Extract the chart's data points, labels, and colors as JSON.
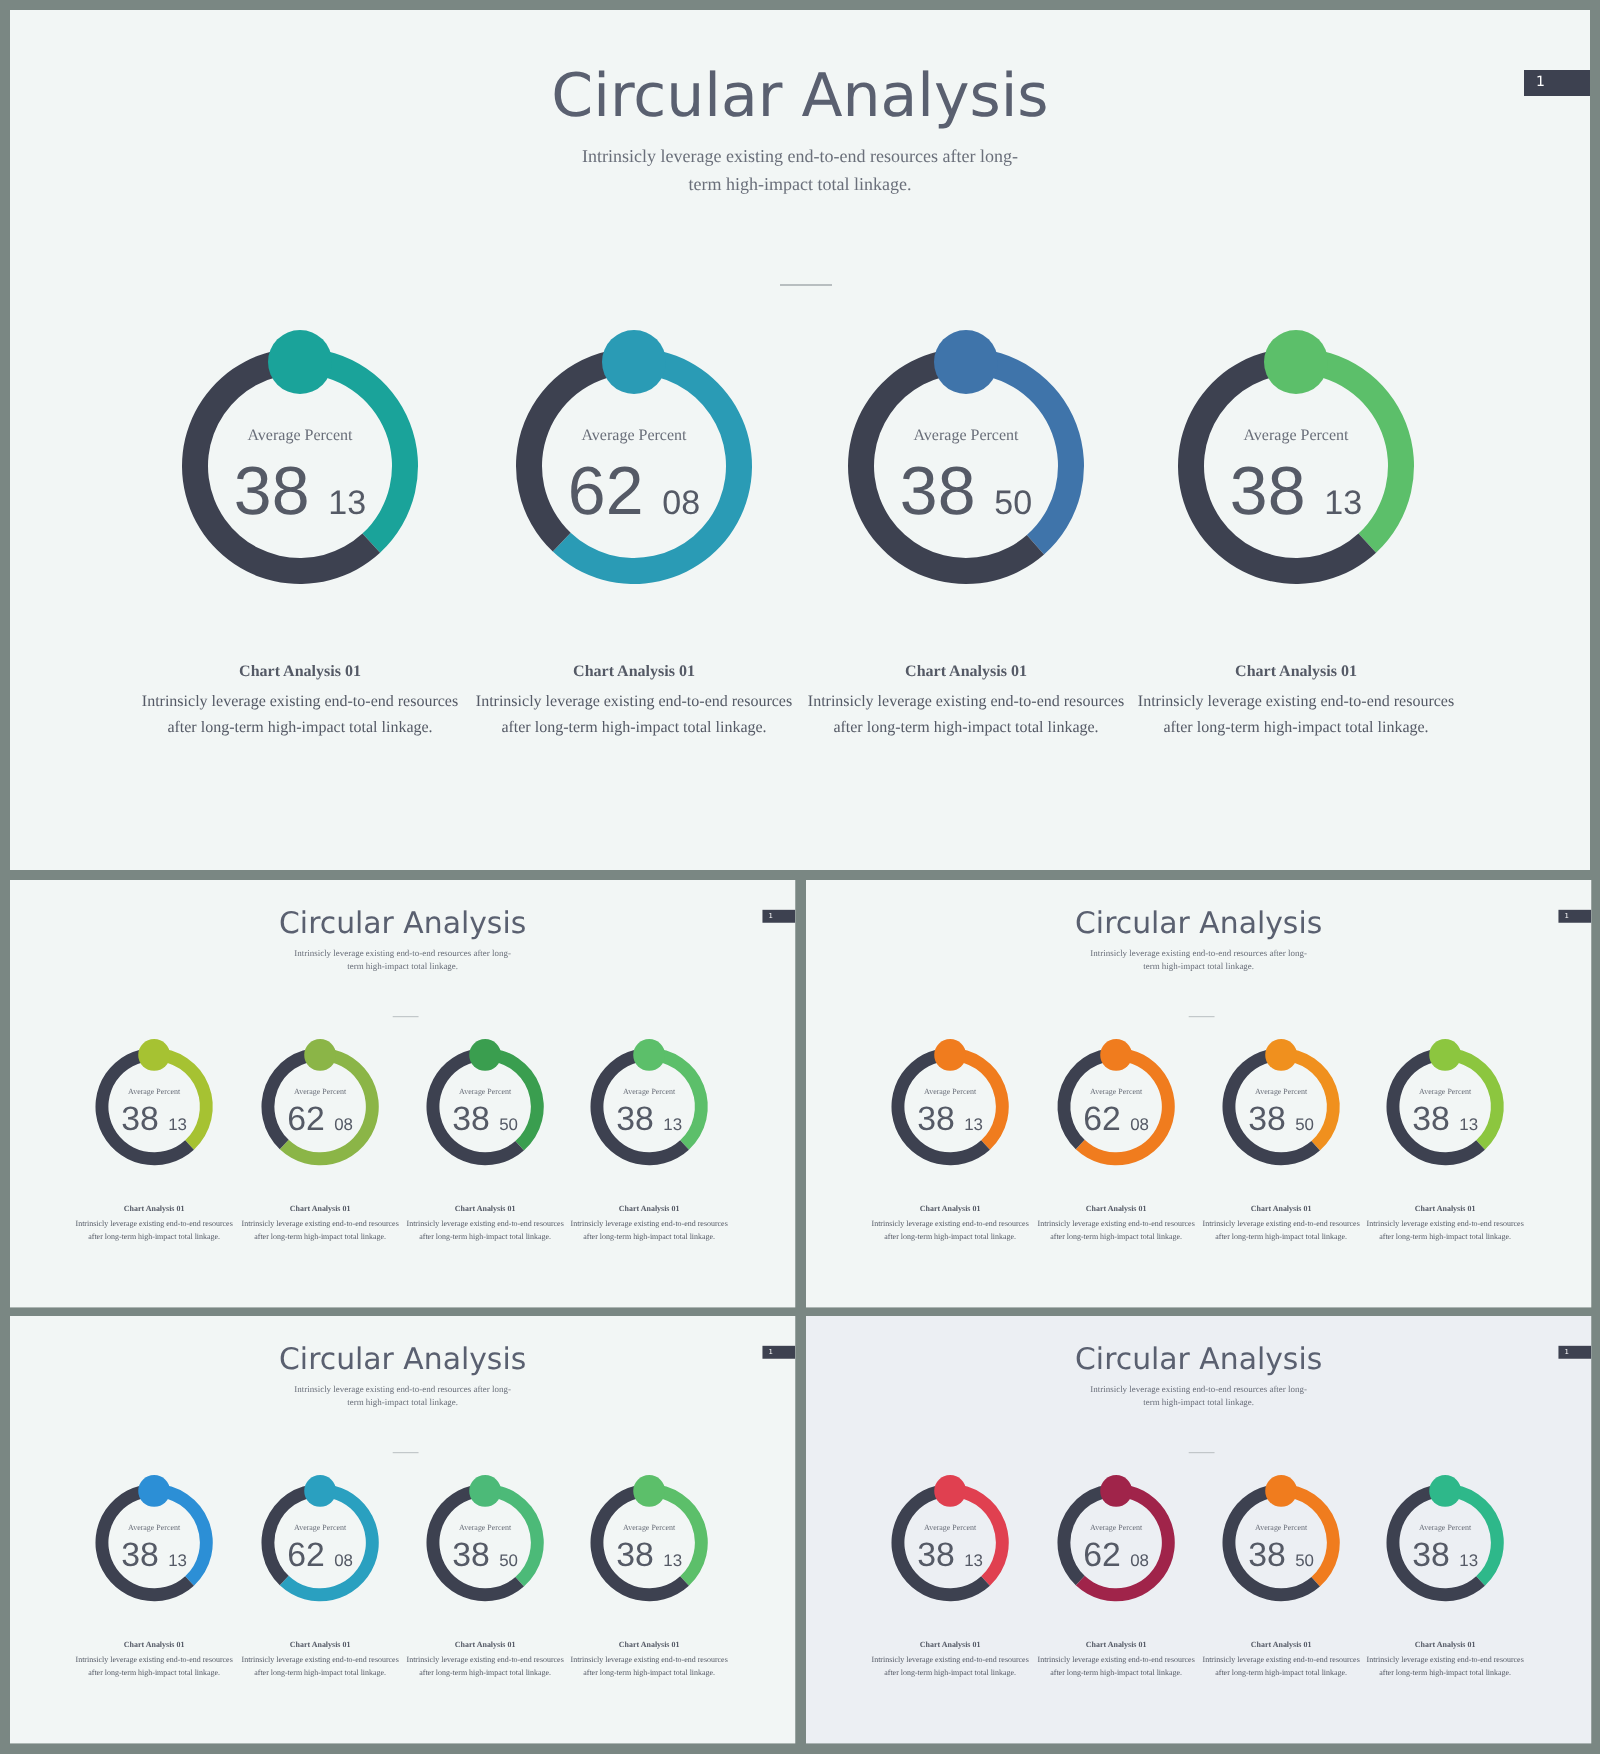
{
  "chart_data": [
    {
      "type": "other",
      "title": "Circular Analysis",
      "subtitle": "Intrinsicly leverage existing end-to-end resources after long-term high-impact total linkage.",
      "annotations": [
        "1"
      ]
    },
    {
      "type": "donut",
      "title": "Chart Analysis 01",
      "subtitle": "Intrinsicly leverage existing end-to-end resources after long-term high-impact total linkage.",
      "annotations": [
        "Average Percent"
      ],
      "categories": [
        null,
        null
      ],
      "values": [
        38.13,
        61.87
      ],
      "colors": [
        "#1aa39a",
        "#3d4150"
      ],
      "value_labels": [
        "38 13",
        null
      ]
    },
    {
      "type": "donut",
      "title": "Chart Analysis 01",
      "subtitle": "Intrinsicly leverage existing end-to-end resources after long-term high-impact total linkage.",
      "annotations": [
        "Average Percent"
      ],
      "categories": [
        null,
        null
      ],
      "values": [
        62.08,
        37.92
      ],
      "colors": [
        "#2a9bb5",
        "#3d4150"
      ],
      "value_labels": [
        "62 08",
        null
      ]
    },
    {
      "type": "donut",
      "title": "Chart Analysis 01",
      "subtitle": "Intrinsicly leverage existing end-to-end resources after long-term high-impact total linkage.",
      "annotations": [
        "Average Percent"
      ],
      "categories": [
        null,
        null
      ],
      "values": [
        38.5,
        61.5
      ],
      "colors": [
        "#3f74aa",
        "#3d4150"
      ],
      "value_labels": [
        "38 50",
        null
      ]
    },
    {
      "type": "donut",
      "title": "Chart Analysis 01",
      "subtitle": "Intrinsicly leverage existing end-to-end resources after long-term high-impact total linkage.",
      "annotations": [
        "Average Percent"
      ],
      "categories": [
        null,
        null
      ],
      "values": [
        38.13,
        61.87
      ],
      "colors": [
        "#5cbf6a",
        "#3d4150"
      ],
      "value_labels": [
        "38 13",
        null
      ]
    },
    {
      "type": "other",
      "title": "Circular Analysis",
      "subtitle": "Intrinsicly leverage existing end-to-end resources after long-term high-impact total linkage.",
      "annotations": [
        "1"
      ]
    },
    {
      "type": "donut",
      "title": "Chart Analysis 01",
      "subtitle": "Intrinsicly leverage existing end-to-end resources after long-term high-impact total linkage.",
      "annotations": [
        "Average Percent"
      ],
      "categories": [
        null,
        null
      ],
      "values": [
        38.13,
        61.87
      ],
      "colors": [
        "#a6c232",
        "#3d4150"
      ],
      "value_labels": [
        "38 13",
        null
      ]
    },
    {
      "type": "donut",
      "title": "Chart Analysis 01",
      "subtitle": "Intrinsicly leverage existing end-to-end resources after long-term high-impact total linkage.",
      "annotations": [
        "Average Percent"
      ],
      "categories": [
        null,
        null
      ],
      "values": [
        62.08,
        37.92
      ],
      "colors": [
        "#8bb547",
        "#3d4150"
      ],
      "value_labels": [
        "62 08",
        null
      ]
    },
    {
      "type": "donut",
      "title": "Chart Analysis 01",
      "subtitle": "Intrinsicly leverage existing end-to-end resources after long-term high-impact total linkage.",
      "annotations": [
        "Average Percent"
      ],
      "categories": [
        null,
        null
      ],
      "values": [
        38.5,
        61.5
      ],
      "colors": [
        "#3a9e4f",
        "#3d4150"
      ],
      "value_labels": [
        "38 50",
        null
      ]
    },
    {
      "type": "donut",
      "title": "Chart Analysis 01",
      "subtitle": "Intrinsicly leverage existing end-to-end resources after long-term high-impact total linkage.",
      "annotations": [
        "Average Percent"
      ],
      "categories": [
        null,
        null
      ],
      "values": [
        38.13,
        61.87
      ],
      "colors": [
        "#5cbf6a",
        "#3d4150"
      ],
      "value_labels": [
        "38 13",
        null
      ]
    },
    {
      "type": "other",
      "title": "Circular Analysis",
      "subtitle": "Intrinsicly leverage existing end-to-end resources after long-term high-impact total linkage.",
      "annotations": [
        "1"
      ]
    },
    {
      "type": "donut",
      "title": "Chart Analysis 01",
      "subtitle": "Intrinsicly leverage existing end-to-end resources after long-term high-impact total linkage.",
      "annotations": [
        "Average Percent"
      ],
      "categories": [
        null,
        null
      ],
      "values": [
        38.13,
        61.87
      ],
      "colors": [
        "#f07c1e",
        "#3d4150"
      ],
      "value_labels": [
        "38 13",
        null
      ]
    },
    {
      "type": "donut",
      "title": "Chart Analysis 01",
      "subtitle": "Intrinsicly leverage existing end-to-end resources after long-term high-impact total linkage.",
      "annotations": [
        "Average Percent"
      ],
      "categories": [
        null,
        null
      ],
      "values": [
        62.08,
        37.92
      ],
      "colors": [
        "#f07c1e",
        "#3d4150"
      ],
      "value_labels": [
        "62 08",
        null
      ]
    },
    {
      "type": "donut",
      "title": "Chart Analysis 01",
      "subtitle": "Intrinsicly leverage existing end-to-end resources after long-term high-impact total linkage.",
      "annotations": [
        "Average Percent"
      ],
      "categories": [
        null,
        null
      ],
      "values": [
        38.5,
        61.5
      ],
      "colors": [
        "#f0901e",
        "#3d4150"
      ],
      "value_labels": [
        "38 50",
        null
      ]
    },
    {
      "type": "donut",
      "title": "Chart Analysis 01",
      "subtitle": "Intrinsicly leverage existing end-to-end resources after long-term high-impact total linkage.",
      "annotations": [
        "Average Percent"
      ],
      "categories": [
        null,
        null
      ],
      "values": [
        38.13,
        61.87
      ],
      "colors": [
        "#8cc63f",
        "#3d4150"
      ],
      "value_labels": [
        "38 13",
        null
      ]
    },
    {
      "type": "other",
      "title": "Circular Analysis",
      "subtitle": "Intrinsicly leverage existing end-to-end resources after long-term high-impact total linkage.",
      "annotations": [
        "1"
      ]
    },
    {
      "type": "donut",
      "title": "Chart Analysis 01",
      "subtitle": "Intrinsicly leverage existing end-to-end resources after long-term high-impact total linkage.",
      "annotations": [
        "Average Percent"
      ],
      "categories": [
        null,
        null
      ],
      "values": [
        38.13,
        61.87
      ],
      "colors": [
        "#2c8fd6",
        "#3d4150"
      ],
      "value_labels": [
        "38 13",
        null
      ]
    },
    {
      "type": "donut",
      "title": "Chart Analysis 01",
      "subtitle": "Intrinsicly leverage existing end-to-end resources after long-term high-impact total linkage.",
      "annotations": [
        "Average Percent"
      ],
      "categories": [
        null,
        null
      ],
      "values": [
        62.08,
        37.92
      ],
      "colors": [
        "#2aa0c0",
        "#3d4150"
      ],
      "value_labels": [
        "62 08",
        null
      ]
    },
    {
      "type": "donut",
      "title": "Chart Analysis 01",
      "subtitle": "Intrinsicly leverage existing end-to-end resources after long-term high-impact total linkage.",
      "annotations": [
        "Average Percent"
      ],
      "categories": [
        null,
        null
      ],
      "values": [
        38.5,
        61.5
      ],
      "colors": [
        "#4cba78",
        "#3d4150"
      ],
      "value_labels": [
        "38 50",
        null
      ]
    },
    {
      "type": "donut",
      "title": "Chart Analysis 01",
      "subtitle": "Intrinsicly leverage existing end-to-end resources after long-term high-impact total linkage.",
      "annotations": [
        "Average Percent"
      ],
      "categories": [
        null,
        null
      ],
      "values": [
        38.13,
        61.87
      ],
      "colors": [
        "#5cbf6a",
        "#3d4150"
      ],
      "value_labels": [
        "38 13",
        null
      ]
    },
    {
      "type": "other",
      "title": "Circular Analysis",
      "subtitle": "Intrinsicly leverage existing end-to-end resources after long-term high-impact total linkage.",
      "annotations": [
        "1"
      ]
    },
    {
      "type": "donut",
      "title": "Chart Analysis 01",
      "subtitle": "Intrinsicly leverage existing end-to-end resources after long-term high-impact total linkage.",
      "annotations": [
        "Average Percent"
      ],
      "categories": [
        null,
        null
      ],
      "values": [
        38.13,
        61.87
      ],
      "colors": [
        "#e04050",
        "#3d4150"
      ],
      "value_labels": [
        "38 13",
        null
      ]
    },
    {
      "type": "donut",
      "title": "Chart Analysis 01",
      "subtitle": "Intrinsicly leverage existing end-to-end resources after long-term high-impact total linkage.",
      "annotations": [
        "Average Percent"
      ],
      "categories": [
        null,
        null
      ],
      "values": [
        62.08,
        37.92
      ],
      "colors": [
        "#a0244a",
        "#3d4150"
      ],
      "value_labels": [
        "62 08",
        null
      ]
    },
    {
      "type": "donut",
      "title": "Chart Analysis 01",
      "subtitle": "Intrinsicly leverage existing end-to-end resources after long-term high-impact total linkage.",
      "annotations": [
        "Average Percent"
      ],
      "categories": [
        null,
        null
      ],
      "values": [
        38.5,
        61.5
      ],
      "colors": [
        "#f07c1e",
        "#3d4150"
      ],
      "value_labels": [
        "38 50",
        null
      ]
    },
    {
      "type": "donut",
      "title": "Chart Analysis 01",
      "subtitle": "Intrinsicly leverage existing end-to-end resources after long-term high-impact total linkage.",
      "annotations": [
        "Average Percent"
      ],
      "categories": [
        null,
        null
      ],
      "values": [
        38.13,
        61.87
      ],
      "colors": [
        "#2eb88a",
        "#3d4150"
      ],
      "value_labels": [
        "38 13",
        null
      ]
    }
  ]
}
